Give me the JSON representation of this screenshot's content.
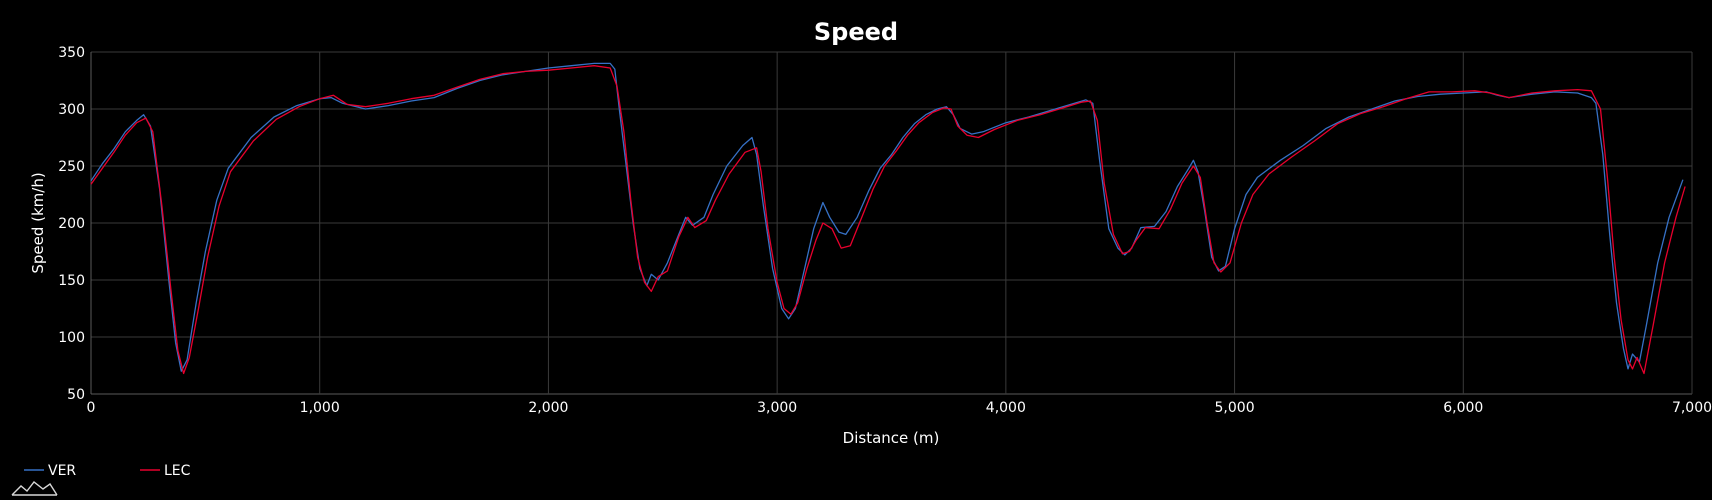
{
  "chart_data": {
    "type": "line",
    "title": "Speed",
    "xlabel": "Distance (m)",
    "ylabel": "Speed (km/h)",
    "xlim": [
      0,
      7000
    ],
    "ylim": [
      50,
      350
    ],
    "x_ticks": [
      0,
      1000,
      2000,
      3000,
      4000,
      5000,
      6000,
      7000
    ],
    "x_tick_labels": [
      "0",
      "1,000",
      "2,000",
      "3,000",
      "4,000",
      "5,000",
      "6,000",
      "7,000"
    ],
    "y_ticks": [
      50,
      100,
      150,
      200,
      250,
      300,
      350
    ],
    "y_tick_labels": [
      "50",
      "100",
      "150",
      "200",
      "250",
      "300",
      "350"
    ],
    "grid": true,
    "legend": "bottom-left",
    "series": [
      {
        "name": "VER",
        "color": "#3671C6",
        "points": [
          [
            0,
            237
          ],
          [
            50,
            252
          ],
          [
            100,
            265
          ],
          [
            150,
            280
          ],
          [
            200,
            290
          ],
          [
            230,
            295
          ],
          [
            260,
            285
          ],
          [
            300,
            230
          ],
          [
            340,
            150
          ],
          [
            370,
            95
          ],
          [
            395,
            70
          ],
          [
            420,
            80
          ],
          [
            460,
            130
          ],
          [
            500,
            175
          ],
          [
            550,
            220
          ],
          [
            600,
            248
          ],
          [
            700,
            275
          ],
          [
            800,
            293
          ],
          [
            900,
            303
          ],
          [
            1000,
            309
          ],
          [
            1050,
            310
          ],
          [
            1100,
            305
          ],
          [
            1200,
            300
          ],
          [
            1300,
            303
          ],
          [
            1400,
            307
          ],
          [
            1500,
            310
          ],
          [
            1600,
            318
          ],
          [
            1700,
            325
          ],
          [
            1800,
            330
          ],
          [
            1900,
            333
          ],
          [
            2000,
            336
          ],
          [
            2100,
            338
          ],
          [
            2200,
            340
          ],
          [
            2270,
            340
          ],
          [
            2290,
            335
          ],
          [
            2310,
            300
          ],
          [
            2340,
            250
          ],
          [
            2370,
            200
          ],
          [
            2400,
            160
          ],
          [
            2430,
            145
          ],
          [
            2450,
            155
          ],
          [
            2480,
            150
          ],
          [
            2520,
            165
          ],
          [
            2570,
            190
          ],
          [
            2600,
            205
          ],
          [
            2630,
            198
          ],
          [
            2680,
            205
          ],
          [
            2720,
            225
          ],
          [
            2780,
            250
          ],
          [
            2850,
            268
          ],
          [
            2890,
            275
          ],
          [
            2910,
            260
          ],
          [
            2940,
            215
          ],
          [
            2980,
            160
          ],
          [
            3020,
            125
          ],
          [
            3050,
            116
          ],
          [
            3080,
            125
          ],
          [
            3120,
            160
          ],
          [
            3160,
            195
          ],
          [
            3200,
            218
          ],
          [
            3230,
            205
          ],
          [
            3270,
            192
          ],
          [
            3300,
            190
          ],
          [
            3350,
            205
          ],
          [
            3400,
            228
          ],
          [
            3450,
            248
          ],
          [
            3500,
            260
          ],
          [
            3550,
            275
          ],
          [
            3600,
            287
          ],
          [
            3650,
            295
          ],
          [
            3700,
            300
          ],
          [
            3740,
            302
          ],
          [
            3770,
            295
          ],
          [
            3800,
            283
          ],
          [
            3850,
            278
          ],
          [
            3900,
            280
          ],
          [
            4000,
            288
          ],
          [
            4100,
            293
          ],
          [
            4200,
            299
          ],
          [
            4300,
            305
          ],
          [
            4350,
            308
          ],
          [
            4380,
            305
          ],
          [
            4410,
            255
          ],
          [
            4450,
            195
          ],
          [
            4490,
            178
          ],
          [
            4520,
            172
          ],
          [
            4550,
            178
          ],
          [
            4590,
            196
          ],
          [
            4650,
            197
          ],
          [
            4700,
            210
          ],
          [
            4750,
            232
          ],
          [
            4800,
            248
          ],
          [
            4820,
            255
          ],
          [
            4840,
            245
          ],
          [
            4870,
            210
          ],
          [
            4900,
            170
          ],
          [
            4930,
            158
          ],
          [
            4960,
            162
          ],
          [
            5000,
            195
          ],
          [
            5050,
            225
          ],
          [
            5100,
            240
          ],
          [
            5200,
            255
          ],
          [
            5300,
            268
          ],
          [
            5400,
            283
          ],
          [
            5500,
            293
          ],
          [
            5600,
            300
          ],
          [
            5700,
            307
          ],
          [
            5800,
            311
          ],
          [
            5900,
            313
          ],
          [
            6000,
            314
          ],
          [
            6100,
            315
          ],
          [
            6150,
            312
          ],
          [
            6200,
            310
          ],
          [
            6300,
            313
          ],
          [
            6400,
            315
          ],
          [
            6500,
            314
          ],
          [
            6560,
            310
          ],
          [
            6580,
            305
          ],
          [
            6610,
            260
          ],
          [
            6640,
            190
          ],
          [
            6670,
            130
          ],
          [
            6700,
            90
          ],
          [
            6720,
            72
          ],
          [
            6740,
            85
          ],
          [
            6770,
            78
          ],
          [
            6800,
            110
          ],
          [
            6850,
            165
          ],
          [
            6900,
            205
          ],
          [
            6960,
            238
          ]
        ]
      },
      {
        "name": "LEC",
        "color": "#E8002D",
        "points": [
          [
            0,
            234
          ],
          [
            50,
            248
          ],
          [
            100,
            262
          ],
          [
            150,
            277
          ],
          [
            200,
            288
          ],
          [
            240,
            292
          ],
          [
            270,
            280
          ],
          [
            310,
            215
          ],
          [
            350,
            140
          ],
          [
            380,
            88
          ],
          [
            405,
            68
          ],
          [
            430,
            82
          ],
          [
            470,
            125
          ],
          [
            510,
            170
          ],
          [
            560,
            215
          ],
          [
            610,
            245
          ],
          [
            710,
            272
          ],
          [
            810,
            291
          ],
          [
            910,
            302
          ],
          [
            1000,
            309
          ],
          [
            1060,
            312
          ],
          [
            1120,
            304
          ],
          [
            1200,
            302
          ],
          [
            1300,
            305
          ],
          [
            1400,
            309
          ],
          [
            1500,
            312
          ],
          [
            1600,
            319
          ],
          [
            1700,
            326
          ],
          [
            1800,
            331
          ],
          [
            1900,
            333
          ],
          [
            2000,
            334
          ],
          [
            2100,
            336
          ],
          [
            2200,
            338
          ],
          [
            2270,
            336
          ],
          [
            2300,
            320
          ],
          [
            2330,
            280
          ],
          [
            2360,
            220
          ],
          [
            2390,
            170
          ],
          [
            2420,
            148
          ],
          [
            2450,
            140
          ],
          [
            2480,
            153
          ],
          [
            2520,
            158
          ],
          [
            2570,
            188
          ],
          [
            2610,
            205
          ],
          [
            2640,
            196
          ],
          [
            2690,
            202
          ],
          [
            2730,
            220
          ],
          [
            2790,
            243
          ],
          [
            2860,
            262
          ],
          [
            2910,
            266
          ],
          [
            2930,
            245
          ],
          [
            2960,
            195
          ],
          [
            3000,
            148
          ],
          [
            3030,
            125
          ],
          [
            3060,
            120
          ],
          [
            3090,
            130
          ],
          [
            3130,
            160
          ],
          [
            3170,
            185
          ],
          [
            3200,
            200
          ],
          [
            3240,
            195
          ],
          [
            3280,
            178
          ],
          [
            3320,
            180
          ],
          [
            3370,
            205
          ],
          [
            3420,
            230
          ],
          [
            3470,
            250
          ],
          [
            3520,
            263
          ],
          [
            3570,
            277
          ],
          [
            3620,
            288
          ],
          [
            3680,
            297
          ],
          [
            3730,
            301
          ],
          [
            3760,
            300
          ],
          [
            3790,
            285
          ],
          [
            3830,
            277
          ],
          [
            3880,
            275
          ],
          [
            3950,
            282
          ],
          [
            4050,
            290
          ],
          [
            4150,
            295
          ],
          [
            4250,
            301
          ],
          [
            4330,
            306
          ],
          [
            4370,
            307
          ],
          [
            4400,
            290
          ],
          [
            4430,
            235
          ],
          [
            4470,
            190
          ],
          [
            4510,
            173
          ],
          [
            4540,
            175
          ],
          [
            4570,
            185
          ],
          [
            4610,
            196
          ],
          [
            4670,
            195
          ],
          [
            4720,
            212
          ],
          [
            4770,
            235
          ],
          [
            4820,
            250
          ],
          [
            4850,
            240
          ],
          [
            4880,
            200
          ],
          [
            4910,
            165
          ],
          [
            4940,
            157
          ],
          [
            4980,
            165
          ],
          [
            5030,
            200
          ],
          [
            5080,
            225
          ],
          [
            5150,
            243
          ],
          [
            5250,
            258
          ],
          [
            5350,
            272
          ],
          [
            5450,
            287
          ],
          [
            5550,
            296
          ],
          [
            5650,
            302
          ],
          [
            5750,
            309
          ],
          [
            5850,
            315
          ],
          [
            5950,
            315
          ],
          [
            6050,
            316
          ],
          [
            6120,
            314
          ],
          [
            6200,
            310
          ],
          [
            6300,
            314
          ],
          [
            6400,
            316
          ],
          [
            6500,
            317
          ],
          [
            6560,
            316
          ],
          [
            6600,
            300
          ],
          [
            6630,
            240
          ],
          [
            6660,
            170
          ],
          [
            6690,
            115
          ],
          [
            6720,
            80
          ],
          [
            6740,
            72
          ],
          [
            6760,
            82
          ],
          [
            6790,
            68
          ],
          [
            6830,
            110
          ],
          [
            6880,
            165
          ],
          [
            6930,
            205
          ],
          [
            6970,
            232
          ]
        ]
      }
    ]
  }
}
